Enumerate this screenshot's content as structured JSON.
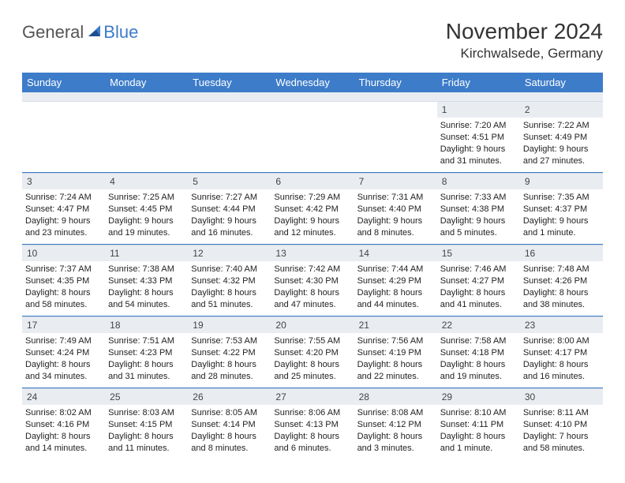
{
  "logo": {
    "general": "General",
    "blue": "Blue"
  },
  "title": "November 2024",
  "location": "Kirchwalsede, Germany",
  "colors": {
    "header_bg": "#3d7cc9",
    "strip_bg": "#e9edf2",
    "text": "#333333",
    "logo_blue": "#3d7cc9"
  },
  "day_labels": [
    "Sunday",
    "Monday",
    "Tuesday",
    "Wednesday",
    "Thursday",
    "Friday",
    "Saturday"
  ],
  "weeks": [
    [
      null,
      null,
      null,
      null,
      null,
      {
        "n": "1",
        "sunrise": "Sunrise: 7:20 AM",
        "sunset": "Sunset: 4:51 PM",
        "daylight": "Daylight: 9 hours and 31 minutes."
      },
      {
        "n": "2",
        "sunrise": "Sunrise: 7:22 AM",
        "sunset": "Sunset: 4:49 PM",
        "daylight": "Daylight: 9 hours and 27 minutes."
      }
    ],
    [
      {
        "n": "3",
        "sunrise": "Sunrise: 7:24 AM",
        "sunset": "Sunset: 4:47 PM",
        "daylight": "Daylight: 9 hours and 23 minutes."
      },
      {
        "n": "4",
        "sunrise": "Sunrise: 7:25 AM",
        "sunset": "Sunset: 4:45 PM",
        "daylight": "Daylight: 9 hours and 19 minutes."
      },
      {
        "n": "5",
        "sunrise": "Sunrise: 7:27 AM",
        "sunset": "Sunset: 4:44 PM",
        "daylight": "Daylight: 9 hours and 16 minutes."
      },
      {
        "n": "6",
        "sunrise": "Sunrise: 7:29 AM",
        "sunset": "Sunset: 4:42 PM",
        "daylight": "Daylight: 9 hours and 12 minutes."
      },
      {
        "n": "7",
        "sunrise": "Sunrise: 7:31 AM",
        "sunset": "Sunset: 4:40 PM",
        "daylight": "Daylight: 9 hours and 8 minutes."
      },
      {
        "n": "8",
        "sunrise": "Sunrise: 7:33 AM",
        "sunset": "Sunset: 4:38 PM",
        "daylight": "Daylight: 9 hours and 5 minutes."
      },
      {
        "n": "9",
        "sunrise": "Sunrise: 7:35 AM",
        "sunset": "Sunset: 4:37 PM",
        "daylight": "Daylight: 9 hours and 1 minute."
      }
    ],
    [
      {
        "n": "10",
        "sunrise": "Sunrise: 7:37 AM",
        "sunset": "Sunset: 4:35 PM",
        "daylight": "Daylight: 8 hours and 58 minutes."
      },
      {
        "n": "11",
        "sunrise": "Sunrise: 7:38 AM",
        "sunset": "Sunset: 4:33 PM",
        "daylight": "Daylight: 8 hours and 54 minutes."
      },
      {
        "n": "12",
        "sunrise": "Sunrise: 7:40 AM",
        "sunset": "Sunset: 4:32 PM",
        "daylight": "Daylight: 8 hours and 51 minutes."
      },
      {
        "n": "13",
        "sunrise": "Sunrise: 7:42 AM",
        "sunset": "Sunset: 4:30 PM",
        "daylight": "Daylight: 8 hours and 47 minutes."
      },
      {
        "n": "14",
        "sunrise": "Sunrise: 7:44 AM",
        "sunset": "Sunset: 4:29 PM",
        "daylight": "Daylight: 8 hours and 44 minutes."
      },
      {
        "n": "15",
        "sunrise": "Sunrise: 7:46 AM",
        "sunset": "Sunset: 4:27 PM",
        "daylight": "Daylight: 8 hours and 41 minutes."
      },
      {
        "n": "16",
        "sunrise": "Sunrise: 7:48 AM",
        "sunset": "Sunset: 4:26 PM",
        "daylight": "Daylight: 8 hours and 38 minutes."
      }
    ],
    [
      {
        "n": "17",
        "sunrise": "Sunrise: 7:49 AM",
        "sunset": "Sunset: 4:24 PM",
        "daylight": "Daylight: 8 hours and 34 minutes."
      },
      {
        "n": "18",
        "sunrise": "Sunrise: 7:51 AM",
        "sunset": "Sunset: 4:23 PM",
        "daylight": "Daylight: 8 hours and 31 minutes."
      },
      {
        "n": "19",
        "sunrise": "Sunrise: 7:53 AM",
        "sunset": "Sunset: 4:22 PM",
        "daylight": "Daylight: 8 hours and 28 minutes."
      },
      {
        "n": "20",
        "sunrise": "Sunrise: 7:55 AM",
        "sunset": "Sunset: 4:20 PM",
        "daylight": "Daylight: 8 hours and 25 minutes."
      },
      {
        "n": "21",
        "sunrise": "Sunrise: 7:56 AM",
        "sunset": "Sunset: 4:19 PM",
        "daylight": "Daylight: 8 hours and 22 minutes."
      },
      {
        "n": "22",
        "sunrise": "Sunrise: 7:58 AM",
        "sunset": "Sunset: 4:18 PM",
        "daylight": "Daylight: 8 hours and 19 minutes."
      },
      {
        "n": "23",
        "sunrise": "Sunrise: 8:00 AM",
        "sunset": "Sunset: 4:17 PM",
        "daylight": "Daylight: 8 hours and 16 minutes."
      }
    ],
    [
      {
        "n": "24",
        "sunrise": "Sunrise: 8:02 AM",
        "sunset": "Sunset: 4:16 PM",
        "daylight": "Daylight: 8 hours and 14 minutes."
      },
      {
        "n": "25",
        "sunrise": "Sunrise: 8:03 AM",
        "sunset": "Sunset: 4:15 PM",
        "daylight": "Daylight: 8 hours and 11 minutes."
      },
      {
        "n": "26",
        "sunrise": "Sunrise: 8:05 AM",
        "sunset": "Sunset: 4:14 PM",
        "daylight": "Daylight: 8 hours and 8 minutes."
      },
      {
        "n": "27",
        "sunrise": "Sunrise: 8:06 AM",
        "sunset": "Sunset: 4:13 PM",
        "daylight": "Daylight: 8 hours and 6 minutes."
      },
      {
        "n": "28",
        "sunrise": "Sunrise: 8:08 AM",
        "sunset": "Sunset: 4:12 PM",
        "daylight": "Daylight: 8 hours and 3 minutes."
      },
      {
        "n": "29",
        "sunrise": "Sunrise: 8:10 AM",
        "sunset": "Sunset: 4:11 PM",
        "daylight": "Daylight: 8 hours and 1 minute."
      },
      {
        "n": "30",
        "sunrise": "Sunrise: 8:11 AM",
        "sunset": "Sunset: 4:10 PM",
        "daylight": "Daylight: 7 hours and 58 minutes."
      }
    ]
  ]
}
